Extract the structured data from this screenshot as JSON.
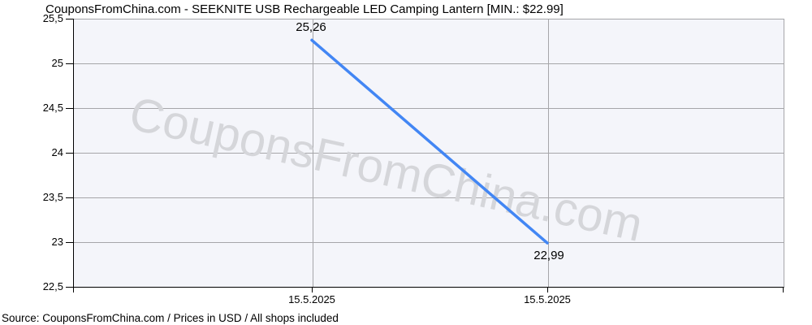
{
  "title": "CouponsFromChina.com - SEEKNITE USB Rechargeable LED Camping Lantern [MIN.: $22.99]",
  "watermark": "CouponsFromChina.com",
  "source_line": "Source: CouponsFromChina.com / Prices in USD / All shops included",
  "axes": {
    "y_ticks": [
      "25,5",
      "25",
      "24,5",
      "24",
      "23,5",
      "23",
      "22,5"
    ],
    "x_ticks": [
      "15.5.2025",
      "15.5.2025"
    ]
  },
  "points": {
    "start_label": "25,26",
    "end_label": "22,99"
  },
  "colors": {
    "line": "#4286f4",
    "plot_bg": "#f4f5fa",
    "grid": "#a6a6a9",
    "axis": "#000000",
    "watermark": "#d5d6da"
  },
  "chart_data": {
    "type": "line",
    "title": "CouponsFromChina.com - SEEKNITE USB Rechargeable LED Camping Lantern [MIN.: $22.99]",
    "x": [
      "15.5.2025",
      "15.5.2025"
    ],
    "values": [
      25.26,
      22.99
    ],
    "point_labels": [
      "25,26",
      "22,99"
    ],
    "ylim": [
      22.5,
      25.5
    ],
    "y_tick_step": 0.5,
    "xlabel": "",
    "ylabel": "",
    "grid": true,
    "legend": "none",
    "min_price_shown": 22.99,
    "currency": "USD",
    "line_color": "#4286f4"
  }
}
